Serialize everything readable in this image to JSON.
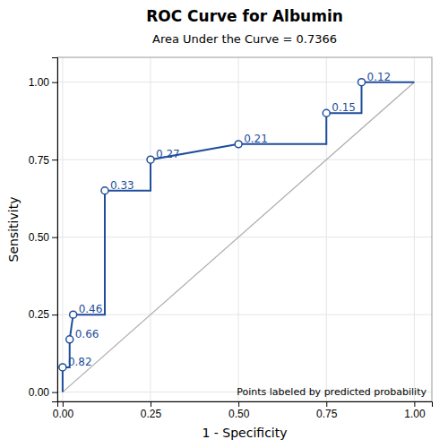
{
  "chart_data": {
    "type": "line",
    "title": "ROC Curve for Albumin",
    "subtitle": "Area Under the Curve = 0.7366",
    "xlabel": "1 - Specificity",
    "ylabel": "Sensitivity",
    "annotation": "Points labeled by predicted probability",
    "grid": true,
    "xlim": [
      -0.015,
      1.05
    ],
    "ylim": [
      -0.03,
      1.08
    ],
    "xticks": [
      {
        "value": 0.0,
        "label": "0.00"
      },
      {
        "value": 0.25,
        "label": "0.25"
      },
      {
        "value": 0.5,
        "label": "0.50"
      },
      {
        "value": 0.75,
        "label": "0.75"
      },
      {
        "value": 1.0,
        "label": "1.00"
      }
    ],
    "yticks": [
      {
        "value": 0.0,
        "label": "0.00"
      },
      {
        "value": 0.25,
        "label": "0.25"
      },
      {
        "value": 0.5,
        "label": "0.50"
      },
      {
        "value": 0.75,
        "label": "0.75"
      },
      {
        "value": 1.0,
        "label": "1.00"
      }
    ],
    "series": [
      {
        "type": "line",
        "color": "#AAAAAA",
        "x": [
          0,
          1
        ],
        "values": [
          0,
          1
        ]
      },
      {
        "type": "line",
        "color": "#1F4E9B",
        "x": [
          0.0,
          0.0,
          0.02,
          0.02,
          0.03,
          0.12,
          0.12,
          0.25,
          0.25,
          0.5,
          0.75,
          0.75,
          0.85,
          0.85,
          1.0
        ],
        "values": [
          0.0,
          0.08,
          0.08,
          0.17,
          0.25,
          0.25,
          0.65,
          0.65,
          0.75,
          0.8,
          0.8,
          0.9,
          0.9,
          1.0,
          1.0
        ]
      },
      {
        "type": "scatter",
        "marker": "circle",
        "color": "#1F4E9B",
        "x": [
          0.0,
          0.02,
          0.03,
          0.12,
          0.25,
          0.5,
          0.75,
          0.85
        ],
        "values": [
          0.08,
          0.17,
          0.25,
          0.65,
          0.75,
          0.8,
          0.9,
          1.0
        ],
        "labels": [
          "0.82",
          "0.66",
          "0.46",
          "0.33",
          "0.27",
          "0.21",
          "0.15",
          "0.12"
        ]
      }
    ]
  }
}
